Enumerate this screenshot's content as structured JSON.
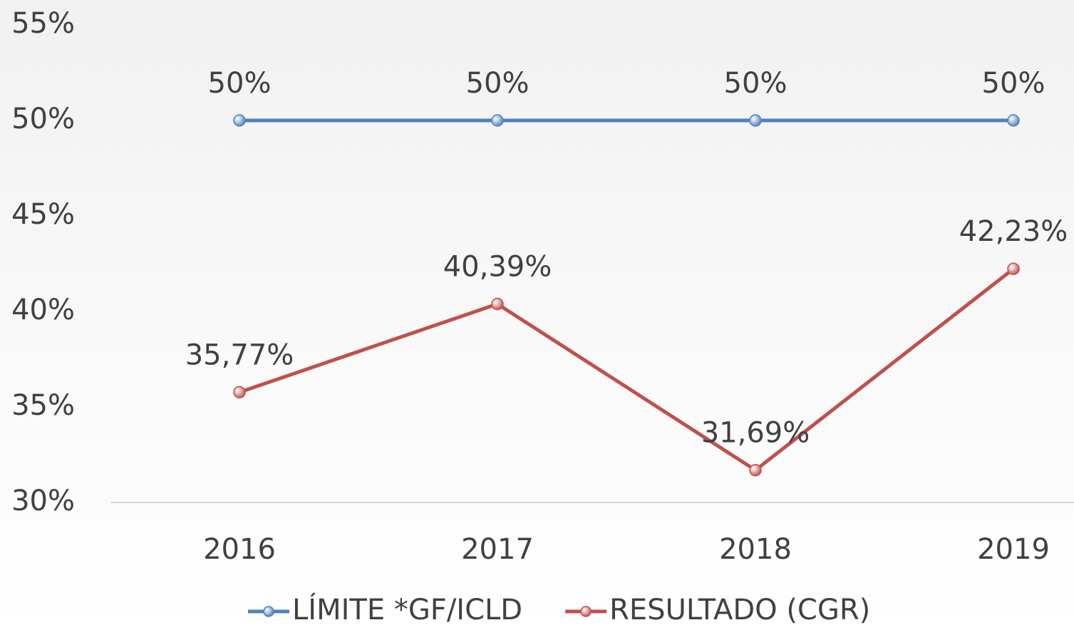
{
  "chart_data": {
    "type": "line",
    "categories": [
      "2016",
      "2017",
      "2018",
      "2019"
    ],
    "series": [
      {
        "name": "LÍMITE *GF/ICLD",
        "color": "#4f81bd",
        "values": [
          50,
          50,
          50,
          50
        ],
        "value_labels": [
          "50%",
          "50%",
          "50%",
          "50%"
        ]
      },
      {
        "name": "RESULTADO (CGR)",
        "color": "#c0504d",
        "values": [
          35.77,
          40.39,
          31.69,
          42.23
        ],
        "value_labels": [
          "35,77%",
          "40,39%",
          "31,69%",
          "42,23%"
        ]
      }
    ],
    "ylim": [
      30,
      55
    ],
    "yticks": [
      {
        "value": 30,
        "label": "30%"
      },
      {
        "value": 35,
        "label": "35%"
      },
      {
        "value": 40,
        "label": "40%"
      },
      {
        "value": 45,
        "label": "45%"
      },
      {
        "value": 50,
        "label": "50%"
      },
      {
        "value": 55,
        "label": "55%"
      }
    ],
    "grid": false,
    "legend": "bottom"
  }
}
